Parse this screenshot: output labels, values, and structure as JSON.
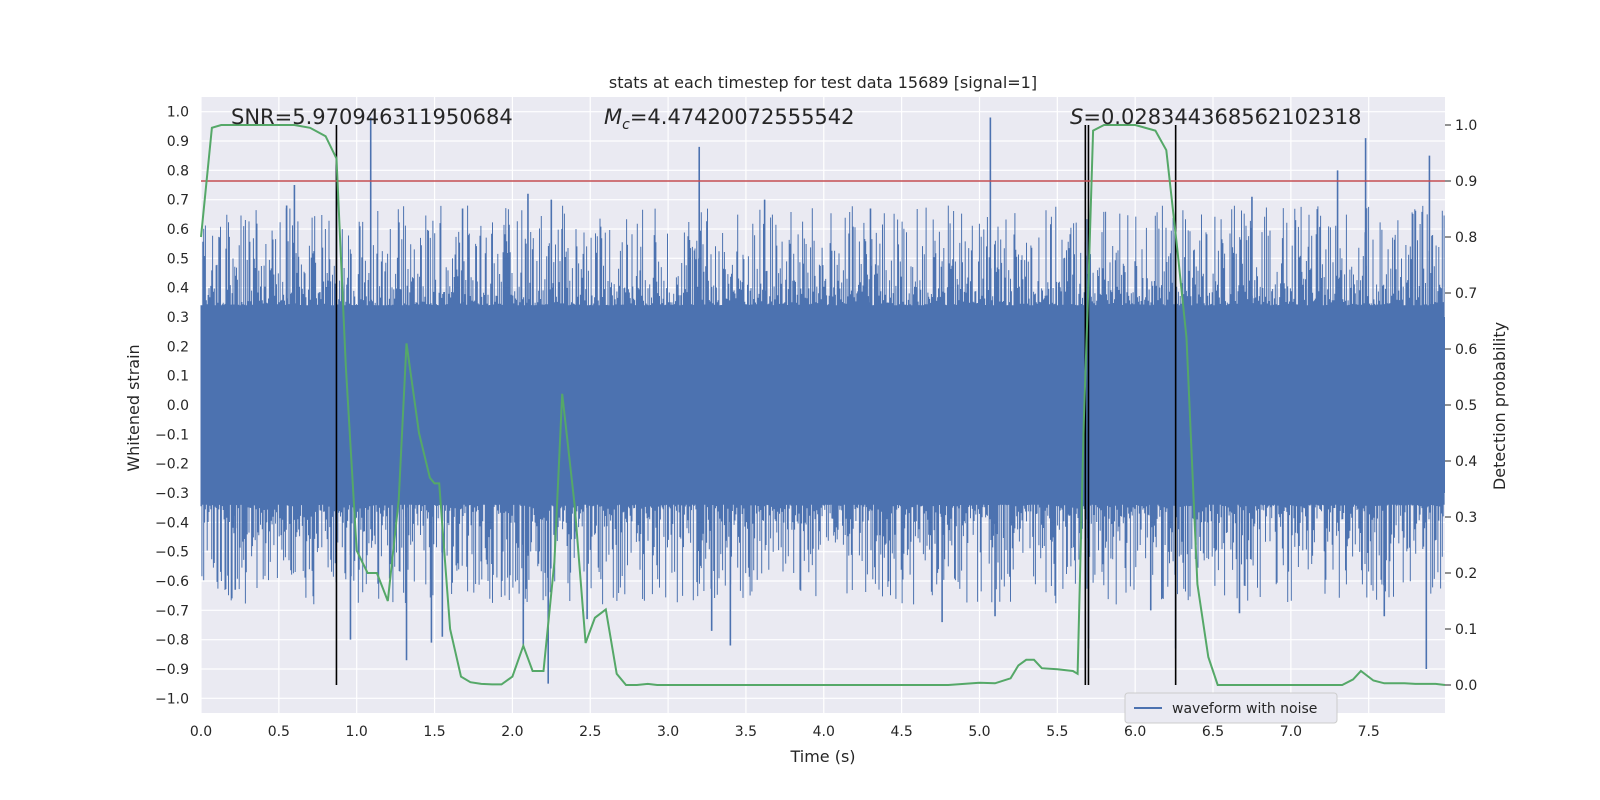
{
  "chart_data": {
    "type": "line",
    "title": "stats at each timestep for test data 15689 [signal=1]",
    "xlabel": "Time (s)",
    "ylabel": "Whitened strain",
    "y2label": "Detection probability",
    "xlim": [
      0.0,
      7.99
    ],
    "ylim": [
      -1.05,
      1.05
    ],
    "y2lim": [
      -0.05,
      1.05
    ],
    "x_ticks": [
      "0.0",
      "0.5",
      "1.0",
      "1.5",
      "2.0",
      "2.5",
      "3.0",
      "3.5",
      "4.0",
      "4.5",
      "5.0",
      "5.5",
      "6.0",
      "6.5",
      "7.0",
      "7.5"
    ],
    "y_ticks": [
      "1.0",
      "0.9",
      "0.8",
      "0.7",
      "0.6",
      "0.5",
      "0.4",
      "0.3",
      "0.2",
      "0.1",
      "0.0",
      "-0.1",
      "-0.2",
      "-0.3",
      "-0.4",
      "-0.5",
      "-0.6",
      "-0.7",
      "-0.8",
      "-0.9",
      "-1.0"
    ],
    "y2_ticks": [
      "1.0",
      "0.9",
      "0.8",
      "0.7",
      "0.6",
      "0.5",
      "0.4",
      "0.3",
      "0.2",
      "0.1",
      "0.0"
    ],
    "grid": true,
    "legend": {
      "position": "bottom-right",
      "entries": [
        "waveform with noise"
      ]
    },
    "annotations": {
      "snr_text": "SNR=5.970946311950684",
      "mc_prefix": "M",
      "mc_sub": "c",
      "mc_value": "=4.47420072555542",
      "s_prefix": "S",
      "s_value": "=0.028344368562102318"
    },
    "threshold": 0.9,
    "vertical_lines": [
      0.87,
      5.68,
      5.7,
      6.26
    ],
    "series": [
      {
        "name": "waveform with noise",
        "kind": "strain",
        "color": "#4c72b0",
        "dense_envelope": [
          -0.4,
          0.4
        ],
        "spikes": [
          [
            0.87,
            0.82
          ],
          [
            1.09,
            0.98
          ],
          [
            3.2,
            0.88
          ],
          [
            5.07,
            0.98
          ],
          [
            7.48,
            0.91
          ],
          [
            7.89,
            0.85
          ],
          [
            0.55,
            0.68
          ],
          [
            0.6,
            0.75
          ],
          [
            1.68,
            0.67
          ],
          [
            2.1,
            0.72
          ],
          [
            2.25,
            0.7
          ],
          [
            3.62,
            0.7
          ],
          [
            4.3,
            0.67
          ],
          [
            6.75,
            0.71
          ],
          [
            7.3,
            0.8
          ],
          [
            1.32,
            -0.87
          ],
          [
            1.48,
            -0.81
          ],
          [
            1.55,
            -0.79
          ],
          [
            0.96,
            -0.8
          ],
          [
            2.23,
            -0.95
          ],
          [
            2.07,
            -0.82
          ],
          [
            3.28,
            -0.77
          ],
          [
            3.4,
            -0.82
          ],
          [
            5.7,
            -0.83
          ],
          [
            6.26,
            -0.83
          ],
          [
            7.87,
            -0.9
          ],
          [
            5.1,
            -0.72
          ],
          [
            0.22,
            -0.63
          ],
          [
            2.48,
            -0.73
          ],
          [
            4.76,
            -0.74
          ],
          [
            6.1,
            -0.7
          ],
          [
            6.67,
            -0.71
          ],
          [
            7.6,
            -0.72
          ]
        ]
      },
      {
        "name": "detection probability",
        "kind": "probability",
        "color": "#55a868",
        "x": [
          0.0,
          0.07,
          0.13,
          0.2,
          0.3,
          0.4,
          0.5,
          0.6,
          0.7,
          0.8,
          0.87,
          0.93,
          1.0,
          1.07,
          1.13,
          1.2,
          1.27,
          1.32,
          1.4,
          1.47,
          1.5,
          1.53,
          1.6,
          1.67,
          1.73,
          1.8,
          1.87,
          1.93,
          2.0,
          2.07,
          2.13,
          2.2,
          2.27,
          2.32,
          2.4,
          2.47,
          2.53,
          2.6,
          2.67,
          2.73,
          2.8,
          2.87,
          2.93,
          3.0,
          3.2,
          3.4,
          3.6,
          3.8,
          4.0,
          4.2,
          4.4,
          4.6,
          4.8,
          5.0,
          5.1,
          5.2,
          5.25,
          5.3,
          5.35,
          5.4,
          5.5,
          5.6,
          5.63,
          5.67,
          5.7,
          5.73,
          5.8,
          5.87,
          5.93,
          6.0,
          6.13,
          6.2,
          6.27,
          6.33,
          6.4,
          6.47,
          6.53,
          6.6,
          6.67,
          6.73,
          6.8,
          6.93,
          7.0,
          7.2,
          7.33,
          7.4,
          7.45,
          7.53,
          7.6,
          7.67,
          7.73,
          7.8,
          7.87,
          7.93,
          7.99
        ],
        "y": [
          0.8,
          0.995,
          1.0,
          1.0,
          1.0,
          1.0,
          1.0,
          1.0,
          0.995,
          0.98,
          0.94,
          0.57,
          0.24,
          0.2,
          0.2,
          0.15,
          0.33,
          0.61,
          0.45,
          0.37,
          0.36,
          0.36,
          0.1,
          0.015,
          0.005,
          0.002,
          0.001,
          0.001,
          0.015,
          0.07,
          0.025,
          0.025,
          0.22,
          0.52,
          0.32,
          0.075,
          0.12,
          0.135,
          0.02,
          0.0,
          0.0,
          0.002,
          0.0,
          0.0,
          0.0,
          0.0,
          0.0,
          0.0,
          0.0,
          0.0,
          0.0,
          0.0,
          0.0,
          0.004,
          0.003,
          0.012,
          0.035,
          0.045,
          0.045,
          0.03,
          0.028,
          0.025,
          0.02,
          0.47,
          0.72,
          0.99,
          1.0,
          1.0,
          1.0,
          1.0,
          0.99,
          0.955,
          0.78,
          0.62,
          0.18,
          0.05,
          0.0,
          0.0,
          0.0,
          0.0,
          0.0,
          0.0,
          0.0,
          0.0,
          0.0,
          0.01,
          0.025,
          0.008,
          0.003,
          0.003,
          0.003,
          0.002,
          0.002,
          0.002,
          0.0
        ]
      },
      {
        "name": "threshold",
        "kind": "threshold",
        "color": "#c44e52"
      }
    ]
  }
}
